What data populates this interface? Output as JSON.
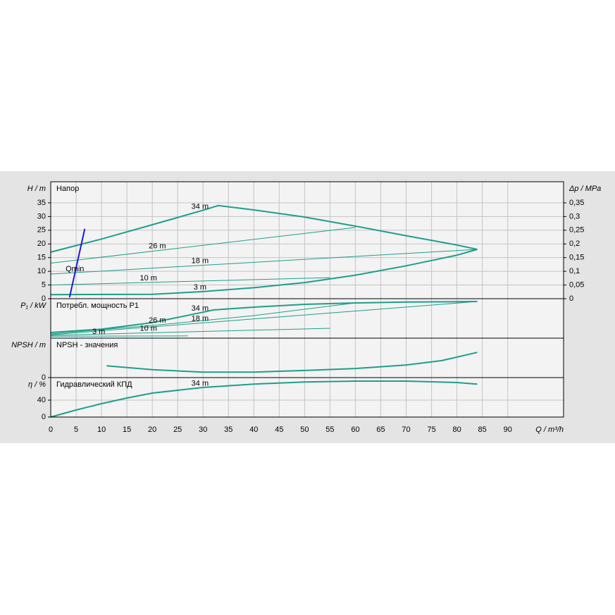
{
  "chart_data": [
    {
      "type": "line",
      "title": "Напор",
      "ylabel": "H / m",
      "y2label": "Δp / MPa",
      "xlim": [
        0,
        101
      ],
      "ylim": [
        0,
        42.7
      ],
      "yticks": [
        0,
        5,
        10,
        15,
        20,
        25,
        30,
        35
      ],
      "y2lim": [
        0,
        0.427
      ],
      "y2ticks": [
        0,
        {
          "value": 0.05,
          "label": "0,05"
        },
        {
          "value": 0.1,
          "label": "0,1"
        },
        {
          "value": 0.15,
          "label": "0,15"
        },
        {
          "value": 0.2,
          "label": "0,2"
        },
        {
          "value": 0.25,
          "label": "0,25"
        },
        {
          "value": 0.3,
          "label": "0,3"
        },
        {
          "value": 0.35,
          "label": "0,35"
        }
      ],
      "grid": true,
      "series": [
        {
          "name": "34 m",
          "color": "#1f9e89",
          "line_width": 2,
          "x": [
            0,
            10,
            20,
            30,
            33,
            40,
            50,
            60,
            70,
            80,
            84
          ],
          "values": [
            17,
            21.8,
            27,
            32.3,
            34,
            32.4,
            29.8,
            26.5,
            23,
            19.6,
            18
          ]
        },
        {
          "name": "26 m",
          "color": "#1f9e89",
          "line_width": 1,
          "x": [
            0,
            60
          ],
          "values": [
            13,
            26
          ]
        },
        {
          "name": "18 m",
          "color": "#1f9e89",
          "line_width": 1,
          "x": [
            0,
            84
          ],
          "values": [
            9,
            18
          ]
        },
        {
          "name": "10 m",
          "color": "#1f9e89",
          "line_width": 1,
          "x": [
            0,
            55
          ],
          "values": [
            5,
            7.7
          ]
        },
        {
          "name": "3 m",
          "color": "#1f9e89",
          "line_width": 2,
          "x": [
            0,
            20,
            30,
            40,
            50,
            60,
            70,
            80,
            84
          ],
          "values": [
            1.5,
            1.6,
            2.6,
            4,
            5.9,
            8.6,
            12,
            15.9,
            18
          ]
        },
        {
          "name": "Qmin",
          "color": "#1d1dd6",
          "line_width": 2,
          "x": [
            3.7,
            6.7
          ],
          "values": [
            0.5,
            25.5
          ]
        }
      ]
    },
    {
      "type": "line",
      "title": "Потребл. мощность P1",
      "ylabel": "P₁ / kW",
      "xlim": [
        0,
        101
      ],
      "ylim": [
        0,
        1.4
      ],
      "grid": true,
      "series": [
        {
          "name": "34 m",
          "color": "#1f9e89",
          "line_width": 2,
          "x": [
            0,
            10,
            20,
            30,
            32,
            40,
            50,
            60,
            70,
            84
          ],
          "values": [
            0.2,
            0.32,
            0.55,
            0.92,
            1.0,
            1.1,
            1.2,
            1.25,
            1.28,
            1.3
          ]
        },
        {
          "name": "26 m",
          "color": "#1f9e89",
          "line_width": 1,
          "x": [
            0,
            20,
            40,
            60
          ],
          "values": [
            0.15,
            0.45,
            0.8,
            1.25
          ]
        },
        {
          "name": "18 m",
          "color": "#1f9e89",
          "line_width": 1,
          "x": [
            0,
            84
          ],
          "values": [
            0.12,
            1.3
          ]
        },
        {
          "name": "10 m",
          "color": "#1f9e89",
          "line_width": 1,
          "x": [
            0,
            55
          ],
          "values": [
            0.1,
            0.35
          ]
        },
        {
          "name": "3 m",
          "color": "#1f9e89",
          "line_width": 1,
          "x": [
            0,
            27
          ],
          "values": [
            0.07,
            0.08
          ]
        }
      ]
    },
    {
      "type": "line",
      "title": "NPSH - значения",
      "ylabel": "NPSH / m",
      "xlim": [
        0,
        101
      ],
      "ylim": [
        0,
        10
      ],
      "yticks": [
        0
      ],
      "grid": true,
      "series": [
        {
          "name": null,
          "color": "#1f9e89",
          "line_width": 2,
          "x": [
            11,
            20,
            30,
            40,
            50,
            60,
            70,
            77,
            84
          ],
          "values": [
            3.0,
            2.0,
            1.4,
            1.4,
            1.8,
            2.3,
            3.2,
            4.3,
            6.4
          ]
        }
      ]
    },
    {
      "type": "line",
      "title": "Гидравлический КПД",
      "ylabel": "η / %",
      "xlabel": "Q / m³/h",
      "xlim": [
        0,
        101
      ],
      "ylim": [
        0,
        93.3
      ],
      "yticks": [
        0,
        40
      ],
      "xticks": [
        0,
        5,
        10,
        15,
        20,
        25,
        30,
        35,
        40,
        45,
        50,
        55,
        60,
        65,
        70,
        75,
        80,
        85,
        90
      ],
      "grid": true,
      "series": [
        {
          "name": "34 m",
          "color": "#1f9e89",
          "line_width": 2,
          "x": [
            0,
            5,
            10,
            15,
            20,
            30,
            40,
            50,
            60,
            70,
            80,
            84
          ],
          "values": [
            0,
            16.7,
            31.7,
            45,
            56.7,
            70,
            78,
            83,
            85,
            85,
            81.7,
            78
          ]
        }
      ]
    }
  ]
}
